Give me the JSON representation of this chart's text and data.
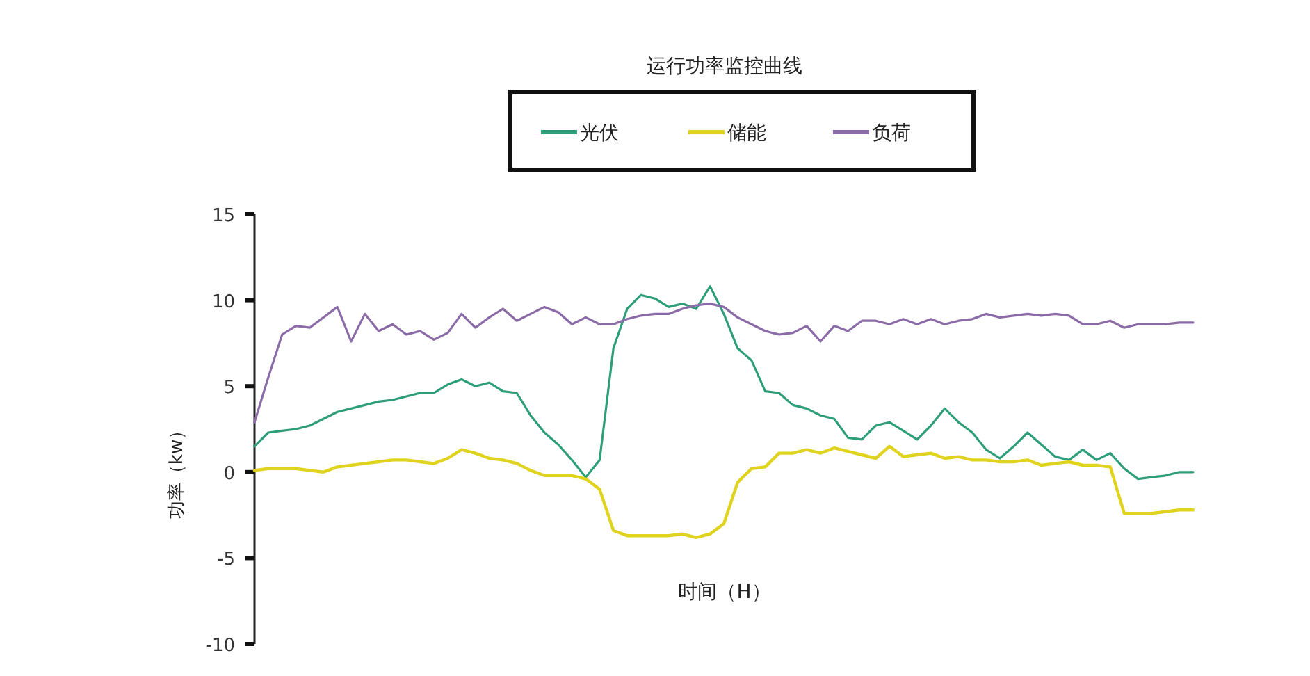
{
  "chart_data": {
    "type": "line",
    "title": "运行功率监控曲线",
    "xlabel": "时间（H）",
    "ylabel": "功率（kw）",
    "categories": [
      null,
      null,
      null,
      null,
      null,
      null,
      null,
      null,
      null,
      null,
      null,
      null,
      null,
      null,
      null,
      null,
      null,
      null,
      null,
      null,
      null,
      null,
      null,
      null,
      null,
      null,
      null,
      null,
      null,
      null,
      null,
      null,
      null,
      null,
      null,
      null,
      null,
      null,
      null,
      null,
      null,
      null,
      null,
      null,
      null,
      null,
      null,
      null,
      null,
      null,
      null,
      null,
      null,
      null,
      null,
      null,
      null,
      null,
      null,
      null,
      null,
      null,
      null,
      null,
      null,
      null,
      null,
      null,
      null
    ],
    "ylim": [
      -10,
      15
    ],
    "yticks": [
      15,
      10,
      5,
      0,
      -5,
      -10
    ],
    "grid": false,
    "legend": "top",
    "tick_labels": "y",
    "series": [
      {
        "name": "光伏",
        "color": "#2e9e7a",
        "values": [
          1.5,
          2.3,
          2.4,
          2.5,
          2.7,
          3.1,
          3.5,
          3.7,
          3.9,
          4.1,
          4.2,
          4.4,
          4.6,
          4.6,
          5.1,
          5.4,
          5.0,
          5.2,
          4.7,
          4.6,
          3.3,
          2.3,
          1.6,
          0.7,
          -0.3,
          0.7,
          7.2,
          9.5,
          10.3,
          10.1,
          9.6,
          9.8,
          9.5,
          10.8,
          9.2,
          7.2,
          6.5,
          4.7,
          4.6,
          3.9,
          3.7,
          3.3,
          3.1,
          2.0,
          1.9,
          2.7,
          2.9,
          2.4,
          1.9,
          2.7,
          3.7,
          2.9,
          2.3,
          1.3,
          0.8,
          1.5,
          2.3,
          1.6,
          0.9,
          0.7,
          1.3,
          0.7,
          1.1,
          0.2,
          -0.4,
          -0.3,
          -0.2,
          0.0,
          0.0
        ]
      },
      {
        "name": "储能",
        "color": "#e0d31f",
        "values": [
          0.1,
          0.2,
          0.2,
          0.2,
          0.1,
          0.0,
          0.3,
          0.4,
          0.5,
          0.6,
          0.7,
          0.7,
          0.6,
          0.5,
          0.8,
          1.3,
          1.1,
          0.8,
          0.7,
          0.5,
          0.1,
          -0.2,
          -0.2,
          -0.2,
          -0.4,
          -1.0,
          -3.4,
          -3.7,
          -3.7,
          -3.7,
          -3.7,
          -3.6,
          -3.8,
          -3.6,
          -3.0,
          -0.6,
          0.2,
          0.3,
          1.1,
          1.1,
          1.3,
          1.1,
          1.4,
          1.2,
          1.0,
          0.8,
          1.5,
          0.9,
          1.0,
          1.1,
          0.8,
          0.9,
          0.7,
          0.7,
          0.6,
          0.6,
          0.7,
          0.4,
          0.5,
          0.6,
          0.4,
          0.4,
          0.3,
          -2.4,
          -2.4,
          -2.4,
          -2.3,
          -2.2,
          -2.2
        ]
      },
      {
        "name": "负荷",
        "color": "#8a6ba8",
        "values": [
          2.9,
          5.5,
          8.0,
          8.5,
          8.4,
          9.0,
          9.6,
          7.6,
          9.2,
          8.2,
          8.6,
          8.0,
          8.2,
          7.7,
          8.1,
          9.2,
          8.4,
          9.0,
          9.5,
          8.8,
          9.2,
          9.6,
          9.3,
          8.6,
          9.0,
          8.6,
          8.6,
          8.9,
          9.1,
          9.2,
          9.2,
          9.5,
          9.7,
          9.8,
          9.6,
          9.0,
          8.6,
          8.2,
          8.0,
          8.1,
          8.5,
          7.6,
          8.5,
          8.2,
          8.8,
          8.8,
          8.6,
          8.9,
          8.6,
          8.9,
          8.6,
          8.8,
          8.9,
          9.2,
          9.0,
          9.1,
          9.2,
          9.1,
          9.2,
          9.1,
          8.6,
          8.6,
          8.8,
          8.4,
          8.6,
          8.6,
          8.6,
          8.7,
          8.7
        ]
      }
    ]
  }
}
